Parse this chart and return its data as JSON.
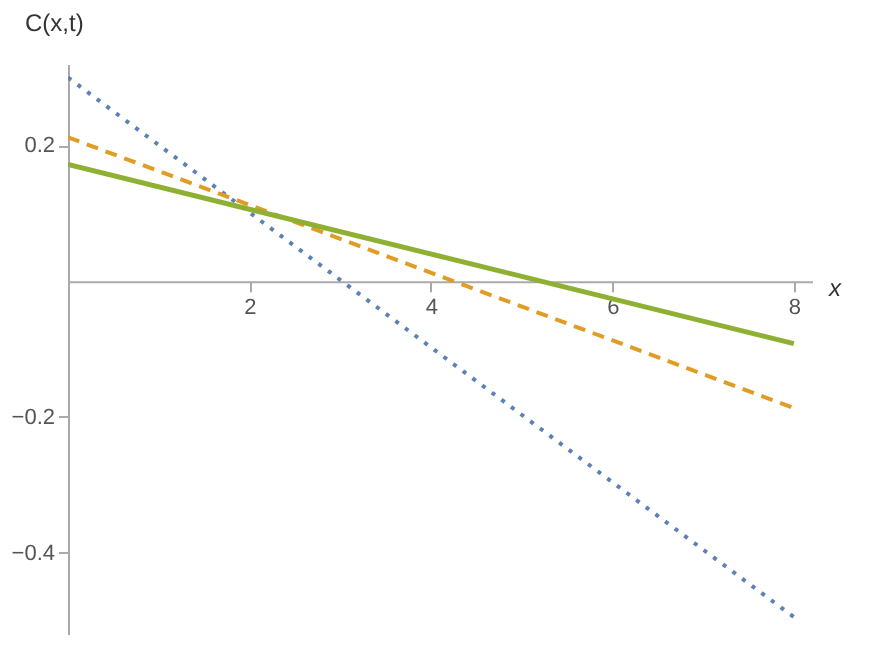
{
  "chart_data": {
    "type": "line",
    "xlabel": "x",
    "ylabel": "C(x,t)",
    "x": [
      0,
      8
    ],
    "series": [
      {
        "color": "#5e81b5",
        "values": [
          0.3,
          -0.495
        ],
        "line_style": "dotted"
      },
      {
        "color": "#e19c24",
        "values": [
          0.212,
          -0.187
        ],
        "line_style": "dashed"
      },
      {
        "color": "#8fb032",
        "values": [
          0.172,
          -0.092
        ],
        "line_style": "solid"
      }
    ],
    "xlim": [
      0,
      8.2
    ],
    "ylim": [
      -0.52,
      0.32
    ],
    "xticks": [
      2,
      4,
      6,
      8
    ],
    "yticks": [
      -0.4,
      -0.2,
      0.2
    ],
    "grid": false,
    "marker": "none"
  }
}
